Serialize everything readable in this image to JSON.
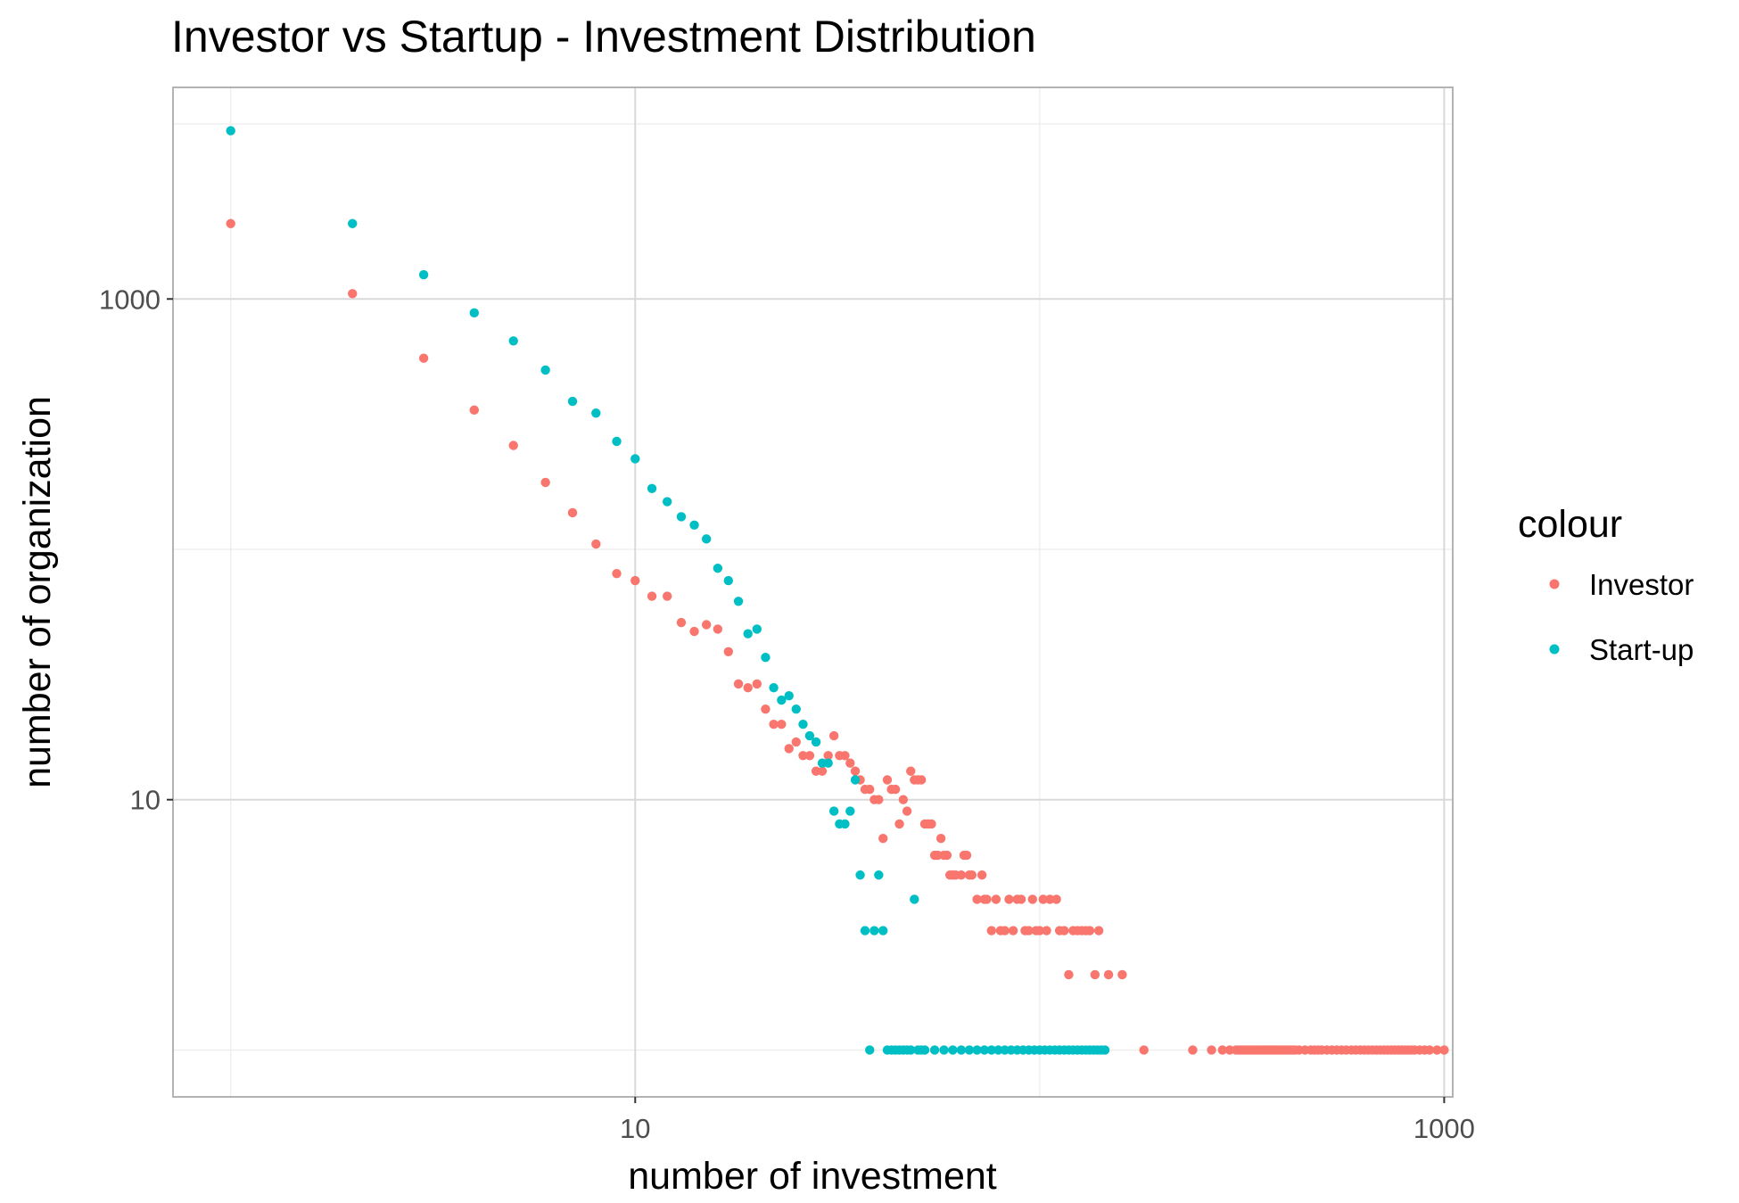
{
  "chart_data": {
    "type": "scatter",
    "title": "Investor vs Startup - Investment Distribution",
    "xlabel": "number of investment",
    "ylabel": "number of organization",
    "x_scale": "log10",
    "y_scale": "log10",
    "xlim": [
      0.72,
      1050
    ],
    "ylim": [
      0.65,
      7000
    ],
    "x_ticks": [
      {
        "value": 10,
        "label": "10"
      },
      {
        "value": 1000,
        "label": "1000"
      }
    ],
    "y_ticks": [
      {
        "value": 10,
        "label": "10"
      },
      {
        "value": 1000,
        "label": "1000"
      }
    ],
    "grid": true,
    "legend": {
      "title": "colour",
      "position": "right"
    },
    "series": [
      {
        "name": "Investor",
        "color": "#F8766D",
        "points": [
          [
            1,
            2000
          ],
          [
            2,
            1050
          ],
          [
            3,
            580
          ],
          [
            4,
            360
          ],
          [
            5,
            260
          ],
          [
            6,
            185
          ],
          [
            7,
            140
          ],
          [
            8,
            105
          ],
          [
            9,
            80
          ],
          [
            10,
            75
          ],
          [
            11,
            65
          ],
          [
            12,
            65
          ],
          [
            13,
            51
          ],
          [
            14,
            47
          ],
          [
            15,
            50
          ],
          [
            16,
            48
          ],
          [
            17,
            39
          ],
          [
            18,
            29
          ],
          [
            19,
            28
          ],
          [
            20,
            29
          ],
          [
            21,
            23
          ],
          [
            22,
            20
          ],
          [
            23,
            20
          ],
          [
            24,
            16
          ],
          [
            25,
            17
          ],
          [
            26,
            15
          ],
          [
            27,
            15
          ],
          [
            28,
            13
          ],
          [
            29,
            13
          ],
          [
            30,
            15
          ],
          [
            31,
            18
          ],
          [
            32,
            15
          ],
          [
            33,
            15
          ],
          [
            34,
            14
          ],
          [
            35,
            13
          ],
          [
            36,
            12
          ],
          [
            37,
            11
          ],
          [
            38,
            11
          ],
          [
            39,
            10
          ],
          [
            40,
            10
          ],
          [
            41,
            7
          ],
          [
            42,
            12
          ],
          [
            43,
            11
          ],
          [
            44,
            11
          ],
          [
            45,
            8
          ],
          [
            46,
            10
          ],
          [
            47,
            9
          ],
          [
            48,
            13
          ],
          [
            49,
            12
          ],
          [
            50,
            12
          ],
          [
            51,
            12
          ],
          [
            52,
            8
          ],
          [
            53,
            8
          ],
          [
            54,
            8
          ],
          [
            55,
            6
          ],
          [
            56,
            6
          ],
          [
            57,
            7
          ],
          [
            58,
            6
          ],
          [
            59,
            6
          ],
          [
            60,
            5
          ],
          [
            61,
            5
          ],
          [
            62,
            5
          ],
          [
            64,
            5
          ],
          [
            65,
            6
          ],
          [
            66,
            6
          ],
          [
            67,
            5
          ],
          [
            68,
            5
          ],
          [
            70,
            4
          ],
          [
            72,
            5
          ],
          [
            73,
            4
          ],
          [
            74,
            4
          ],
          [
            76,
            3
          ],
          [
            78,
            4
          ],
          [
            80,
            3
          ],
          [
            82,
            3
          ],
          [
            84,
            4
          ],
          [
            86,
            3
          ],
          [
            88,
            4
          ],
          [
            90,
            4
          ],
          [
            92,
            3
          ],
          [
            94,
            3
          ],
          [
            96,
            4
          ],
          [
            98,
            3
          ],
          [
            100,
            3
          ],
          [
            102,
            4
          ],
          [
            104,
            3
          ],
          [
            106,
            4
          ],
          [
            110,
            4
          ],
          [
            112,
            3
          ],
          [
            115,
            3
          ],
          [
            118,
            2
          ],
          [
            121,
            3
          ],
          [
            124,
            3
          ],
          [
            127,
            3
          ],
          [
            130,
            3
          ],
          [
            133,
            3
          ],
          [
            137,
            2
          ],
          [
            140,
            3
          ],
          [
            148,
            2
          ],
          [
            160,
            2
          ],
          [
            181,
            1
          ],
          [
            239,
            1
          ],
          [
            266,
            1
          ],
          [
            283,
            1
          ],
          [
            295,
            1
          ],
          [
            306,
            1
          ],
          [
            310,
            1
          ],
          [
            314,
            1
          ],
          [
            318,
            1
          ],
          [
            322,
            1
          ],
          [
            326,
            1
          ],
          [
            330,
            1
          ],
          [
            334,
            1
          ],
          [
            338,
            1
          ],
          [
            342,
            1
          ],
          [
            346,
            1
          ],
          [
            350,
            1
          ],
          [
            354,
            1
          ],
          [
            358,
            1
          ],
          [
            362,
            1
          ],
          [
            366,
            1
          ],
          [
            370,
            1
          ],
          [
            374,
            1
          ],
          [
            378,
            1
          ],
          [
            382,
            1
          ],
          [
            386,
            1
          ],
          [
            390,
            1
          ],
          [
            394,
            1
          ],
          [
            398,
            1
          ],
          [
            403,
            1
          ],
          [
            408,
            1
          ],
          [
            413,
            1
          ],
          [
            418,
            1
          ],
          [
            423,
            1
          ],
          [
            428,
            1
          ],
          [
            438,
            1
          ],
          [
            453,
            1
          ],
          [
            468,
            1
          ],
          [
            478,
            1
          ],
          [
            488,
            1
          ],
          [
            498,
            1
          ],
          [
            513,
            1
          ],
          [
            528,
            1
          ],
          [
            543,
            1
          ],
          [
            558,
            1
          ],
          [
            573,
            1
          ],
          [
            590,
            1
          ],
          [
            605,
            1
          ],
          [
            620,
            1
          ],
          [
            635,
            1
          ],
          [
            650,
            1
          ],
          [
            665,
            1
          ],
          [
            680,
            1
          ],
          [
            695,
            1
          ],
          [
            710,
            1
          ],
          [
            725,
            1
          ],
          [
            740,
            1
          ],
          [
            755,
            1
          ],
          [
            770,
            1
          ],
          [
            785,
            1
          ],
          [
            800,
            1
          ],
          [
            815,
            1
          ],
          [
            830,
            1
          ],
          [
            845,
            1
          ],
          [
            870,
            1
          ],
          [
            895,
            1
          ],
          [
            920,
            1
          ],
          [
            960,
            1
          ],
          [
            1000,
            1
          ]
        ]
      },
      {
        "name": "Start-up",
        "color": "#00BFC4",
        "points": [
          [
            1,
            4700
          ],
          [
            2,
            2000
          ],
          [
            3,
            1250
          ],
          [
            4,
            880
          ],
          [
            5,
            680
          ],
          [
            6,
            520
          ],
          [
            7,
            390
          ],
          [
            8,
            350
          ],
          [
            9,
            270
          ],
          [
            10,
            230
          ],
          [
            11,
            175
          ],
          [
            12,
            155
          ],
          [
            13,
            135
          ],
          [
            14,
            125
          ],
          [
            15,
            110
          ],
          [
            16,
            84
          ],
          [
            17,
            75
          ],
          [
            18,
            62
          ],
          [
            19,
            46
          ],
          [
            20,
            48
          ],
          [
            21,
            37
          ],
          [
            22,
            28
          ],
          [
            23,
            25
          ],
          [
            24,
            26
          ],
          [
            25,
            23
          ],
          [
            26,
            20
          ],
          [
            27,
            18
          ],
          [
            28,
            17
          ],
          [
            29,
            14
          ],
          [
            30,
            14
          ],
          [
            31,
            9
          ],
          [
            32,
            8
          ],
          [
            33,
            8
          ],
          [
            34,
            9
          ],
          [
            35,
            12
          ],
          [
            36,
            5
          ],
          [
            37,
            3
          ],
          [
            38,
            1
          ],
          [
            39,
            3
          ],
          [
            40,
            5
          ],
          [
            41,
            3
          ],
          [
            42,
            1
          ],
          [
            43,
            1
          ],
          [
            44,
            1
          ],
          [
            45,
            1
          ],
          [
            46,
            1
          ],
          [
            47,
            1
          ],
          [
            48,
            1
          ],
          [
            49,
            4
          ],
          [
            50,
            1
          ],
          [
            51,
            1
          ],
          [
            52,
            1
          ],
          [
            55,
            1
          ],
          [
            58,
            1
          ],
          [
            61,
            1
          ],
          [
            64,
            1
          ],
          [
            67,
            1
          ],
          [
            70,
            1
          ],
          [
            73,
            1
          ],
          [
            76,
            1
          ],
          [
            79,
            1
          ],
          [
            82,
            1
          ],
          [
            85,
            1
          ],
          [
            88,
            1
          ],
          [
            91,
            1
          ],
          [
            94,
            1
          ],
          [
            97,
            1
          ],
          [
            100,
            1
          ],
          [
            103,
            1
          ],
          [
            106,
            1
          ],
          [
            109,
            1
          ],
          [
            112,
            1
          ],
          [
            115,
            1
          ],
          [
            118,
            1
          ],
          [
            121,
            1
          ],
          [
            124,
            1
          ],
          [
            127,
            1
          ],
          [
            130,
            1
          ],
          [
            133,
            1
          ],
          [
            136,
            1
          ],
          [
            139,
            1
          ],
          [
            142,
            1
          ],
          [
            145,
            1
          ]
        ]
      }
    ]
  }
}
